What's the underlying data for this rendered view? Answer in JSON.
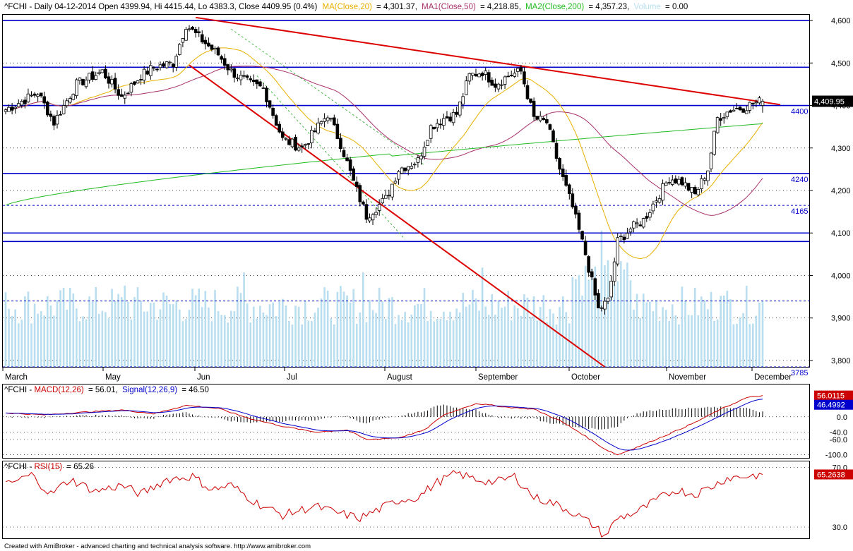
{
  "header": {
    "main_label": "^FCHI - Daily 04-12-2014 Open 4399.94, Hi 4415.44, Lo 4383.3, Close 4409.95 (0.4%)",
    "ma20_label": "MA(Close,20)",
    "ma20_value": "= 4,301.37,",
    "ma50_label": "MA1(Close,50)",
    "ma50_value": "= 4,218.85,",
    "ma200_label": "MA2(Close,200)",
    "ma200_value": "= 4,357.23,",
    "volume_label": "Volume",
    "volume_value": "= 0.00"
  },
  "macd_header": {
    "prefix": "^FCHI - ",
    "macd_label": "MACD(12,26)",
    "macd_value": "= 56.01,",
    "signal_label": "Signal(12,26,9)",
    "signal_value": "= 46.50"
  },
  "rsi_header": {
    "prefix": "^FCHI - ",
    "rsi_label": "RSI(15)",
    "rsi_value": "= 65.26"
  },
  "footer": "Created with AmiBroker - advanced charting and technical analysis software. http://www.amibroker.com",
  "colors": {
    "up": "#ffffff",
    "down": "#000000",
    "ma20": "#e8b000",
    "ma50": "#a8306a",
    "ma200": "#22bb22",
    "volume": "#b9def0",
    "level": "#0000cc",
    "trend": "#dd0000",
    "macd": "#cc0000",
    "signal": "#0000cc",
    "rsi": "#cc0000"
  },
  "chart_data": [
    {
      "type": "candlestick",
      "title": "^FCHI - Daily",
      "yaxis_ticks": [
        "4,600",
        "4,500",
        "4,400",
        "4,300",
        "4,200",
        "4,100",
        "4,000",
        "3,900",
        "3,800"
      ],
      "ylim": [
        3785,
        4615
      ],
      "last_price_label": "4,409.95",
      "month_labels": [
        "March",
        "May",
        "Jun",
        "Jul",
        "August",
        "September",
        "October",
        "November",
        "December"
      ],
      "levels": [
        {
          "value": 4600,
          "style": "solid",
          "label": ""
        },
        {
          "value": 4490,
          "style": "solid",
          "label": ""
        },
        {
          "value": 4400,
          "style": "solid",
          "label": "4400"
        },
        {
          "value": 4240,
          "style": "solid",
          "label": "4240"
        },
        {
          "value": 4165,
          "style": "dashed",
          "label": "4165"
        },
        {
          "value": 4100,
          "style": "solid",
          "label": ""
        },
        {
          "value": 4080,
          "style": "solid",
          "label": ""
        },
        {
          "value": 3940,
          "style": "dashed",
          "label": ""
        },
        {
          "value": 3785,
          "style": "dashed",
          "label": "3785"
        }
      ],
      "anchors": [
        [
          0,
          4390
        ],
        [
          10,
          4430
        ],
        [
          15,
          4360
        ],
        [
          22,
          4450
        ],
        [
          30,
          4480
        ],
        [
          36,
          4420
        ],
        [
          42,
          4470
        ],
        [
          46,
          4490
        ],
        [
          52,
          4500
        ],
        [
          56,
          4590
        ],
        [
          60,
          4560
        ],
        [
          66,
          4520
        ],
        [
          70,
          4480
        ],
        [
          76,
          4450
        ],
        [
          80,
          4440
        ],
        [
          86,
          4320
        ],
        [
          92,
          4300
        ],
        [
          100,
          4380
        ],
        [
          104,
          4310
        ],
        [
          108,
          4220
        ],
        [
          112,
          4140
        ],
        [
          118,
          4180
        ],
        [
          122,
          4250
        ],
        [
          128,
          4270
        ],
        [
          132,
          4350
        ],
        [
          136,
          4370
        ],
        [
          140,
          4380
        ],
        [
          144,
          4470
        ],
        [
          148,
          4480
        ],
        [
          152,
          4450
        ],
        [
          156,
          4470
        ],
        [
          160,
          4480
        ],
        [
          164,
          4370
        ],
        [
          168,
          4360
        ],
        [
          172,
          4250
        ],
        [
          176,
          4160
        ],
        [
          180,
          4050
        ],
        [
          184,
          3920
        ],
        [
          187,
          3940
        ],
        [
          190,
          4080
        ],
        [
          194,
          4110
        ],
        [
          198,
          4130
        ],
        [
          202,
          4180
        ],
        [
          206,
          4230
        ],
        [
          210,
          4220
        ],
        [
          214,
          4190
        ],
        [
          218,
          4250
        ],
        [
          221,
          4370
        ],
        [
          225,
          4390
        ],
        [
          229,
          4395
        ],
        [
          232,
          4405
        ],
        [
          235,
          4410
        ]
      ],
      "n_bars": 236,
      "ma20_last": 4301.37,
      "ma50_last": 4218.85,
      "ma200_last": 4357.23
    },
    {
      "type": "line",
      "title": "MACD(12,26)",
      "yaxis_ticks": [
        "0.0",
        "-40.0",
        "-60.0",
        "-100.0"
      ],
      "ylim": [
        -110,
        85
      ],
      "last_macd_label": "56.0115",
      "last_signal_label": "46.4992",
      "anchors": [
        [
          0,
          10
        ],
        [
          12,
          5
        ],
        [
          24,
          12
        ],
        [
          36,
          18
        ],
        [
          46,
          8
        ],
        [
          56,
          30
        ],
        [
          66,
          22
        ],
        [
          76,
          -5
        ],
        [
          86,
          -25
        ],
        [
          96,
          -40
        ],
        [
          106,
          -35
        ],
        [
          112,
          -60
        ],
        [
          122,
          -55
        ],
        [
          130,
          -35
        ],
        [
          136,
          5
        ],
        [
          146,
          35
        ],
        [
          156,
          25
        ],
        [
          164,
          20
        ],
        [
          172,
          -10
        ],
        [
          178,
          -40
        ],
        [
          186,
          -85
        ],
        [
          190,
          -100
        ],
        [
          196,
          -80
        ],
        [
          206,
          -45
        ],
        [
          214,
          -15
        ],
        [
          222,
          20
        ],
        [
          230,
          50
        ],
        [
          235,
          56
        ]
      ]
    },
    {
      "type": "line",
      "title": "RSI(15)",
      "yaxis_ticks": [
        "70.0",
        "30.0"
      ],
      "ylim": [
        22,
        74
      ],
      "last_value_label": "65.2638",
      "anchors": [
        [
          0,
          58
        ],
        [
          8,
          65
        ],
        [
          14,
          52
        ],
        [
          20,
          62
        ],
        [
          28,
          54
        ],
        [
          36,
          58
        ],
        [
          42,
          52
        ],
        [
          50,
          62
        ],
        [
          58,
          64
        ],
        [
          64,
          55
        ],
        [
          70,
          58
        ],
        [
          78,
          46
        ],
        [
          86,
          38
        ],
        [
          96,
          44
        ],
        [
          102,
          40
        ],
        [
          110,
          36
        ],
        [
          116,
          42
        ],
        [
          122,
          48
        ],
        [
          128,
          50
        ],
        [
          134,
          60
        ],
        [
          140,
          66
        ],
        [
          146,
          62
        ],
        [
          152,
          60
        ],
        [
          158,
          64
        ],
        [
          164,
          50
        ],
        [
          170,
          46
        ],
        [
          176,
          40
        ],
        [
          182,
          32
        ],
        [
          186,
          24
        ],
        [
          190,
          36
        ],
        [
          196,
          40
        ],
        [
          202,
          48
        ],
        [
          208,
          55
        ],
        [
          214,
          52
        ],
        [
          220,
          58
        ],
        [
          224,
          63
        ],
        [
          230,
          64
        ],
        [
          235,
          65.26
        ]
      ]
    }
  ]
}
